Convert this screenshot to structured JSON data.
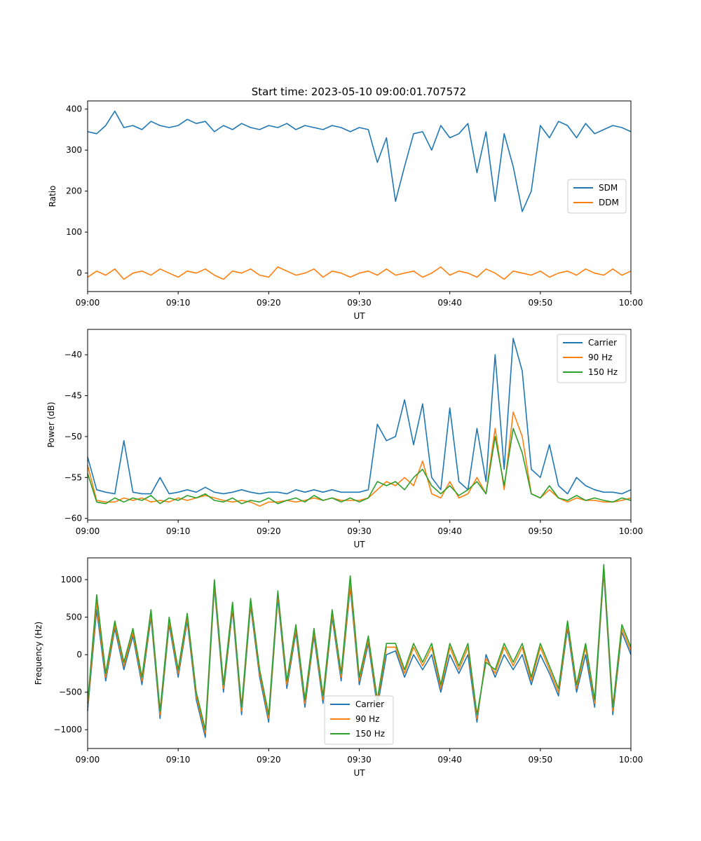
{
  "figure": {
    "title": "Start time: 2023-05-10 09:00:01.707572"
  },
  "colors": {
    "blue": "#1f77b4",
    "orange": "#ff7f0e",
    "green": "#2ca02c"
  },
  "chart_data": [
    {
      "type": "line",
      "title": "Start time: 2023-05-10 09:00:01.707572",
      "xlabel": "UT",
      "ylabel": "Ratio",
      "xlim": [
        "09:00",
        "10:00"
      ],
      "xticks": [
        "09:00",
        "09:10",
        "09:20",
        "09:30",
        "09:40",
        "09:50",
        "10:00"
      ],
      "ylim": [
        -45,
        420
      ],
      "yticks": [
        0,
        100,
        200,
        300,
        400
      ],
      "ytick_labels": [
        "0",
        "100",
        "200",
        "300",
        "400"
      ],
      "legend_position": "center-right",
      "x": [
        "09:00",
        "09:01",
        "09:02",
        "09:03",
        "09:04",
        "09:05",
        "09:06",
        "09:07",
        "09:08",
        "09:09",
        "09:10",
        "09:11",
        "09:12",
        "09:13",
        "09:14",
        "09:15",
        "09:16",
        "09:17",
        "09:18",
        "09:19",
        "09:20",
        "09:21",
        "09:22",
        "09:23",
        "09:24",
        "09:25",
        "09:26",
        "09:27",
        "09:28",
        "09:29",
        "09:30",
        "09:31",
        "09:32",
        "09:33",
        "09:34",
        "09:35",
        "09:36",
        "09:37",
        "09:38",
        "09:39",
        "09:40",
        "09:41",
        "09:42",
        "09:43",
        "09:44",
        "09:45",
        "09:46",
        "09:47",
        "09:48",
        "09:49",
        "09:50",
        "09:51",
        "09:52",
        "09:53",
        "09:54",
        "09:55",
        "09:56",
        "09:57",
        "09:58",
        "09:59",
        "10:00"
      ],
      "series": [
        {
          "name": "SDM",
          "color": "#1f77b4",
          "values": [
            345,
            340,
            360,
            395,
            355,
            360,
            350,
            370,
            360,
            355,
            360,
            375,
            365,
            370,
            345,
            360,
            350,
            365,
            355,
            350,
            360,
            355,
            365,
            350,
            360,
            355,
            350,
            360,
            355,
            345,
            355,
            350,
            270,
            330,
            175,
            260,
            340,
            345,
            300,
            360,
            330,
            340,
            365,
            245,
            345,
            175,
            340,
            260,
            150,
            200,
            360,
            330,
            370,
            360,
            330,
            365,
            340,
            350,
            360,
            355,
            345
          ]
        },
        {
          "name": "DDM",
          "color": "#ff7f0e",
          "values": [
            -10,
            5,
            -5,
            10,
            -15,
            0,
            5,
            -5,
            10,
            0,
            -10,
            5,
            0,
            10,
            -5,
            -15,
            5,
            0,
            10,
            -5,
            -10,
            15,
            5,
            -5,
            0,
            10,
            -10,
            5,
            0,
            -10,
            0,
            5,
            -5,
            10,
            -5,
            0,
            5,
            -10,
            0,
            15,
            -5,
            5,
            0,
            -10,
            10,
            0,
            -15,
            5,
            0,
            -5,
            5,
            -10,
            0,
            5,
            -5,
            10,
            0,
            -5,
            10,
            -5,
            5
          ]
        }
      ]
    },
    {
      "type": "line",
      "title": "",
      "xlabel": "UT",
      "ylabel": "Power (dB)",
      "xlim": [
        "09:00",
        "10:00"
      ],
      "xticks": [
        "09:00",
        "09:10",
        "09:20",
        "09:30",
        "09:40",
        "09:50",
        "10:00"
      ],
      "ylim": [
        -60.2,
        -36.9
      ],
      "yticks": [
        -60,
        -55,
        -50,
        -45,
        -40
      ],
      "ytick_labels": [
        "−60",
        "−55",
        "−50",
        "−45",
        "−40"
      ],
      "legend_position": "top-right",
      "x": [
        "09:00",
        "09:01",
        "09:02",
        "09:03",
        "09:04",
        "09:05",
        "09:06",
        "09:07",
        "09:08",
        "09:09",
        "09:10",
        "09:11",
        "09:12",
        "09:13",
        "09:14",
        "09:15",
        "09:16",
        "09:17",
        "09:18",
        "09:19",
        "09:20",
        "09:21",
        "09:22",
        "09:23",
        "09:24",
        "09:25",
        "09:26",
        "09:27",
        "09:28",
        "09:29",
        "09:30",
        "09:31",
        "09:32",
        "09:33",
        "09:34",
        "09:35",
        "09:36",
        "09:37",
        "09:38",
        "09:39",
        "09:40",
        "09:41",
        "09:42",
        "09:43",
        "09:44",
        "09:45",
        "09:46",
        "09:47",
        "09:48",
        "09:49",
        "09:50",
        "09:51",
        "09:52",
        "09:53",
        "09:54",
        "09:55",
        "09:56",
        "09:57",
        "09:58",
        "09:59",
        "10:00"
      ],
      "series": [
        {
          "name": "Carrier",
          "color": "#1f77b4",
          "values": [
            -52.5,
            -56.5,
            -56.8,
            -57,
            -50.5,
            -56.8,
            -57,
            -57,
            -55,
            -57,
            -56.8,
            -56.5,
            -56.8,
            -56.2,
            -56.8,
            -57,
            -56.8,
            -56.5,
            -56.8,
            -57,
            -56.8,
            -56.8,
            -57,
            -56.5,
            -56.8,
            -56.5,
            -56.8,
            -56.5,
            -56.8,
            -56.8,
            -56.8,
            -56.5,
            -48.5,
            -50.5,
            -50,
            -45.5,
            -51,
            -46,
            -55,
            -56.5,
            -46.5,
            -55.5,
            -56.5,
            -49,
            -55.5,
            -40,
            -54,
            -38,
            -42,
            -54,
            -55,
            -51,
            -56,
            -57,
            -55,
            -56,
            -56.5,
            -56.8,
            -56.8,
            -57,
            -56.5
          ]
        },
        {
          "name": "90 Hz",
          "color": "#ff7f0e",
          "values": [
            -53.5,
            -57.8,
            -58,
            -58,
            -57.5,
            -57.8,
            -57.5,
            -58,
            -57.8,
            -58,
            -57.5,
            -57.8,
            -57.5,
            -57.2,
            -57.5,
            -57.8,
            -58,
            -57.8,
            -58,
            -58.5,
            -58,
            -58,
            -57.8,
            -58,
            -57.8,
            -57.5,
            -57.8,
            -57.5,
            -57.8,
            -57.8,
            -57.8,
            -57.5,
            -56.5,
            -55.5,
            -56,
            -55,
            -56,
            -53,
            -57,
            -57.5,
            -55.5,
            -57.5,
            -57,
            -55,
            -57,
            -49,
            -56.5,
            -47,
            -50,
            -57,
            -57.5,
            -56.5,
            -57.5,
            -58,
            -57.5,
            -57.8,
            -57.8,
            -58,
            -58,
            -57.8,
            -57.5
          ]
        },
        {
          "name": "150 Hz",
          "color": "#2ca02c",
          "values": [
            -54.5,
            -58,
            -58.2,
            -57.5,
            -58,
            -57.5,
            -57.8,
            -57.2,
            -58.2,
            -57.5,
            -57.8,
            -57.2,
            -57.5,
            -57,
            -57.8,
            -58,
            -57.5,
            -58.2,
            -57.8,
            -58,
            -57.5,
            -58.2,
            -57.8,
            -57.5,
            -58,
            -57.2,
            -57.8,
            -57.5,
            -58,
            -57.5,
            -58,
            -57.5,
            -55.5,
            -56,
            -55.5,
            -56.5,
            -55,
            -54,
            -56,
            -57,
            -56,
            -57.2,
            -56.5,
            -55.5,
            -57,
            -50,
            -56,
            -49,
            -52,
            -57,
            -57.5,
            -56,
            -57.5,
            -57.8,
            -57.2,
            -57.8,
            -57.5,
            -57.8,
            -58,
            -57.5,
            -57.8
          ]
        }
      ]
    },
    {
      "type": "line",
      "title": "",
      "xlabel": "UT",
      "ylabel": "Frequency (Hz)",
      "xlim": [
        "09:00",
        "10:00"
      ],
      "xticks": [
        "09:00",
        "09:10",
        "09:20",
        "09:30",
        "09:40",
        "09:50",
        "10:00"
      ],
      "ylim": [
        -1250,
        1290
      ],
      "yticks": [
        -1000,
        -500,
        0,
        500,
        1000
      ],
      "ytick_labels": [
        "−1000",
        "−500",
        "0",
        "500",
        "1000"
      ],
      "legend_position": "bottom-center",
      "x": [
        "09:00",
        "09:01",
        "09:02",
        "09:03",
        "09:04",
        "09:05",
        "09:06",
        "09:07",
        "09:08",
        "09:09",
        "09:10",
        "09:11",
        "09:12",
        "09:13",
        "09:14",
        "09:15",
        "09:16",
        "09:17",
        "09:18",
        "09:19",
        "09:20",
        "09:21",
        "09:22",
        "09:23",
        "09:24",
        "09:25",
        "09:26",
        "09:27",
        "09:28",
        "09:29",
        "09:30",
        "09:31",
        "09:32",
        "09:33",
        "09:34",
        "09:35",
        "09:36",
        "09:37",
        "09:38",
        "09:39",
        "09:40",
        "09:41",
        "09:42",
        "09:43",
        "09:44",
        "09:45",
        "09:46",
        "09:47",
        "09:48",
        "09:49",
        "09:50",
        "09:51",
        "09:52",
        "09:53",
        "09:54",
        "09:55",
        "09:56",
        "09:57",
        "09:58",
        "09:59",
        "10:00"
      ],
      "series": [
        {
          "name": "Carrier",
          "color": "#1f77b4",
          "values": [
            -750,
            600,
            -350,
            350,
            -200,
            250,
            -400,
            500,
            -850,
            400,
            -300,
            450,
            -600,
            -1100,
            900,
            -500,
            600,
            -800,
            650,
            -300,
            -900,
            750,
            -450,
            300,
            -700,
            250,
            -650,
            500,
            -350,
            900,
            -400,
            150,
            -700,
            0,
            50,
            -300,
            0,
            -200,
            0,
            -500,
            0,
            -250,
            0,
            -900,
            0,
            -300,
            0,
            -200,
            0,
            -400,
            0,
            -250,
            -550,
            350,
            -500,
            0,
            -700,
            1100,
            -800,
            300,
            0
          ]
        },
        {
          "name": "90 Hz",
          "color": "#ff7f0e",
          "values": [
            -700,
            700,
            -300,
            400,
            -150,
            300,
            -350,
            550,
            -800,
            450,
            -250,
            500,
            -550,
            -1050,
            950,
            -450,
            650,
            -750,
            700,
            -250,
            -850,
            800,
            -400,
            350,
            -650,
            300,
            -600,
            550,
            -300,
            950,
            -350,
            200,
            -650,
            100,
            100,
            -250,
            100,
            -150,
            100,
            -450,
            100,
            -200,
            100,
            -850,
            -50,
            -250,
            100,
            -150,
            100,
            -350,
            100,
            -200,
            -500,
            400,
            -450,
            100,
            -650,
            1150,
            -750,
            350,
            50
          ]
        },
        {
          "name": "150 Hz",
          "color": "#2ca02c",
          "values": [
            -650,
            800,
            -250,
            450,
            -100,
            350,
            -300,
            600,
            -750,
            500,
            -200,
            550,
            -500,
            -1000,
            1000,
            -400,
            700,
            -700,
            750,
            -200,
            -800,
            850,
            -350,
            400,
            -600,
            350,
            -550,
            600,
            -250,
            1050,
            -300,
            250,
            -600,
            150,
            150,
            -200,
            150,
            -100,
            150,
            -400,
            150,
            -150,
            150,
            -800,
            -100,
            -200,
            150,
            -100,
            150,
            -300,
            150,
            -150,
            -450,
            450,
            -400,
            150,
            -600,
            1200,
            -700,
            400,
            100
          ]
        }
      ]
    }
  ]
}
